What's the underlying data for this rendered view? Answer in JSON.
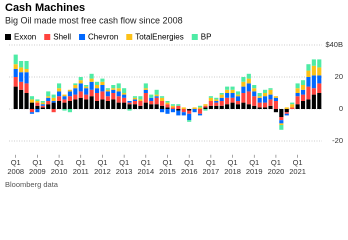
{
  "chart_data": {
    "type": "bar",
    "stacked": true,
    "title": "Cash Machines",
    "subtitle": "Big Oil made most free cash flow since 2008",
    "source": "Bloomberg data",
    "categories": [
      "Q1 2008",
      null,
      null,
      null,
      "Q1 2009",
      null,
      null,
      null,
      "Q1 2010",
      null,
      null,
      null,
      "Q1 2011",
      null,
      null,
      null,
      "Q1 2012",
      null,
      null,
      null,
      "Q1 2013",
      null,
      null,
      null,
      "Q1 2014",
      null,
      null,
      null,
      "Q1 2015",
      null,
      null,
      null,
      "Q1 2016",
      null,
      null,
      null,
      "Q1 2017",
      null,
      null,
      null,
      "Q1 2018",
      null,
      null,
      null,
      "Q1 2019",
      null,
      null,
      null,
      "Q1 2020",
      null,
      null,
      null,
      "Q1 2021",
      null,
      null,
      null,
      null
    ],
    "series": [
      {
        "name": "Exxon",
        "color": "#000000",
        "values": [
          14,
          12,
          10,
          4,
          2,
          1,
          3,
          4,
          5,
          4,
          5,
          6,
          7,
          6,
          8,
          5,
          6,
          5,
          6,
          4,
          4,
          3,
          3,
          2,
          4,
          3,
          3,
          2,
          1,
          0,
          -1,
          0,
          -1,
          0,
          0,
          1,
          2,
          2,
          2,
          3,
          4,
          3,
          4,
          3,
          2,
          1,
          1,
          2,
          -2,
          -5,
          -2,
          0,
          3,
          5,
          6,
          9,
          10
        ]
      },
      {
        "name": "Shell",
        "color": "#ff433d",
        "values": [
          6,
          5,
          6,
          -2,
          2,
          1,
          2,
          -2,
          3,
          2,
          3,
          3,
          4,
          3,
          4,
          5,
          5,
          3,
          4,
          4,
          3,
          1,
          2,
          3,
          6,
          2,
          4,
          3,
          2,
          1,
          2,
          -2,
          -2,
          0,
          -3,
          1,
          3,
          2,
          3,
          4,
          3,
          2,
          6,
          8,
          6,
          3,
          3,
          4,
          5,
          -2,
          -1,
          1,
          5,
          4,
          8,
          4,
          6
        ]
      },
      {
        "name": "Chevron",
        "color": "#0068ff",
        "values": [
          5,
          6,
          7,
          -1,
          -2,
          1,
          2,
          1,
          3,
          2,
          3,
          4,
          5,
          4,
          5,
          3,
          4,
          3,
          2,
          3,
          2,
          1,
          1,
          0,
          2,
          2,
          1,
          -2,
          -3,
          -2,
          -3,
          -2,
          -4,
          -2,
          -1,
          0,
          0,
          1,
          2,
          3,
          3,
          3,
          4,
          5,
          3,
          3,
          4,
          3,
          2,
          -2,
          -1,
          0,
          2,
          3,
          6,
          8,
          5
        ]
      },
      {
        "name": "TotalEnergies",
        "color": "#fcc118",
        "values": [
          3,
          3,
          2,
          2,
          1,
          1,
          1,
          2,
          2,
          1,
          1,
          2,
          2,
          1,
          2,
          2,
          2,
          1,
          1,
          2,
          1,
          0,
          1,
          1,
          1,
          0,
          1,
          2,
          1,
          1,
          0,
          1,
          0,
          1,
          1,
          1,
          2,
          1,
          2,
          2,
          2,
          1,
          3,
          3,
          2,
          1,
          2,
          3,
          1,
          -1,
          1,
          2,
          3,
          3,
          4,
          6,
          5
        ]
      },
      {
        "name": "BP",
        "color": "#4eeba5",
        "values": [
          6,
          4,
          5,
          2,
          1,
          1,
          3,
          2,
          3,
          -1,
          -2,
          1,
          2,
          1,
          3,
          2,
          2,
          1,
          2,
          3,
          3,
          -1,
          1,
          2,
          3,
          2,
          3,
          1,
          1,
          1,
          1,
          0,
          -1,
          0,
          1,
          -1,
          1,
          1,
          1,
          2,
          2,
          2,
          3,
          3,
          2,
          2,
          2,
          1,
          0,
          -3,
          0,
          1,
          3,
          3,
          4,
          4,
          5
        ]
      }
    ],
    "ylim": [
      -28,
      44
    ],
    "yticks": [
      {
        "value": 40,
        "label": "$40B"
      },
      20,
      0,
      -20
    ],
    "grid": true
  }
}
